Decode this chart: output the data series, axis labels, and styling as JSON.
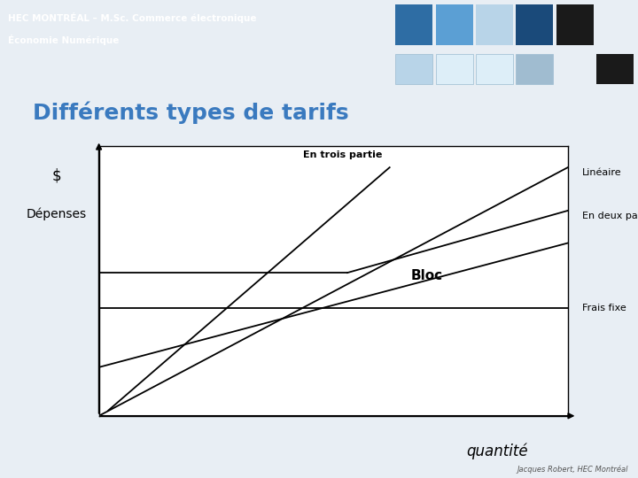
{
  "title": "Différents types de tarifs",
  "header_line1": "HEC MONTRÉAL – M.Sc. Commerce électronique",
  "header_line2": "Économie Numérique",
  "footer": "Jacques Robert, HEC Montréal",
  "header_bg": "#1a4a7a",
  "header_text_color": "#ffffff",
  "bg_color": "#f0f4f8",
  "title_color": "#3a7abf",
  "header_squares_row1": [
    {
      "color": "#2e6da4",
      "border": "#4a8cc4"
    },
    {
      "color": "#5b9fd4",
      "border": "#6aacd8"
    },
    {
      "color": "#b8d4e8",
      "border": "#c8dff0"
    },
    {
      "color": "#1a4a7a",
      "border": "#2a5a8a"
    },
    {
      "color": "#1a1a1a",
      "border": "#2a2a2a"
    }
  ],
  "header_squares_row2": [
    {
      "color": "#217a3c",
      "border": "#217a3c"
    },
    {
      "color": "#1a4a7a",
      "border": "#2a5a8a"
    },
    {
      "color": "#c0392b",
      "border": "#c0392b"
    },
    {
      "color": "#e6b800",
      "border": "#d4a800"
    }
  ],
  "decor_squares": [
    {
      "color": "#b8d4e8",
      "border": "#9bbbd0"
    },
    {
      "color": "#ddeef8",
      "border": "#c8dff0"
    },
    {
      "color": "#ddeef8",
      "border": "#c8dff0"
    },
    {
      "color": "#a0bcd0",
      "border": "#90aabf"
    },
    {
      "color": "#1a1a1a",
      "border": "#1a1a1a"
    }
  ]
}
